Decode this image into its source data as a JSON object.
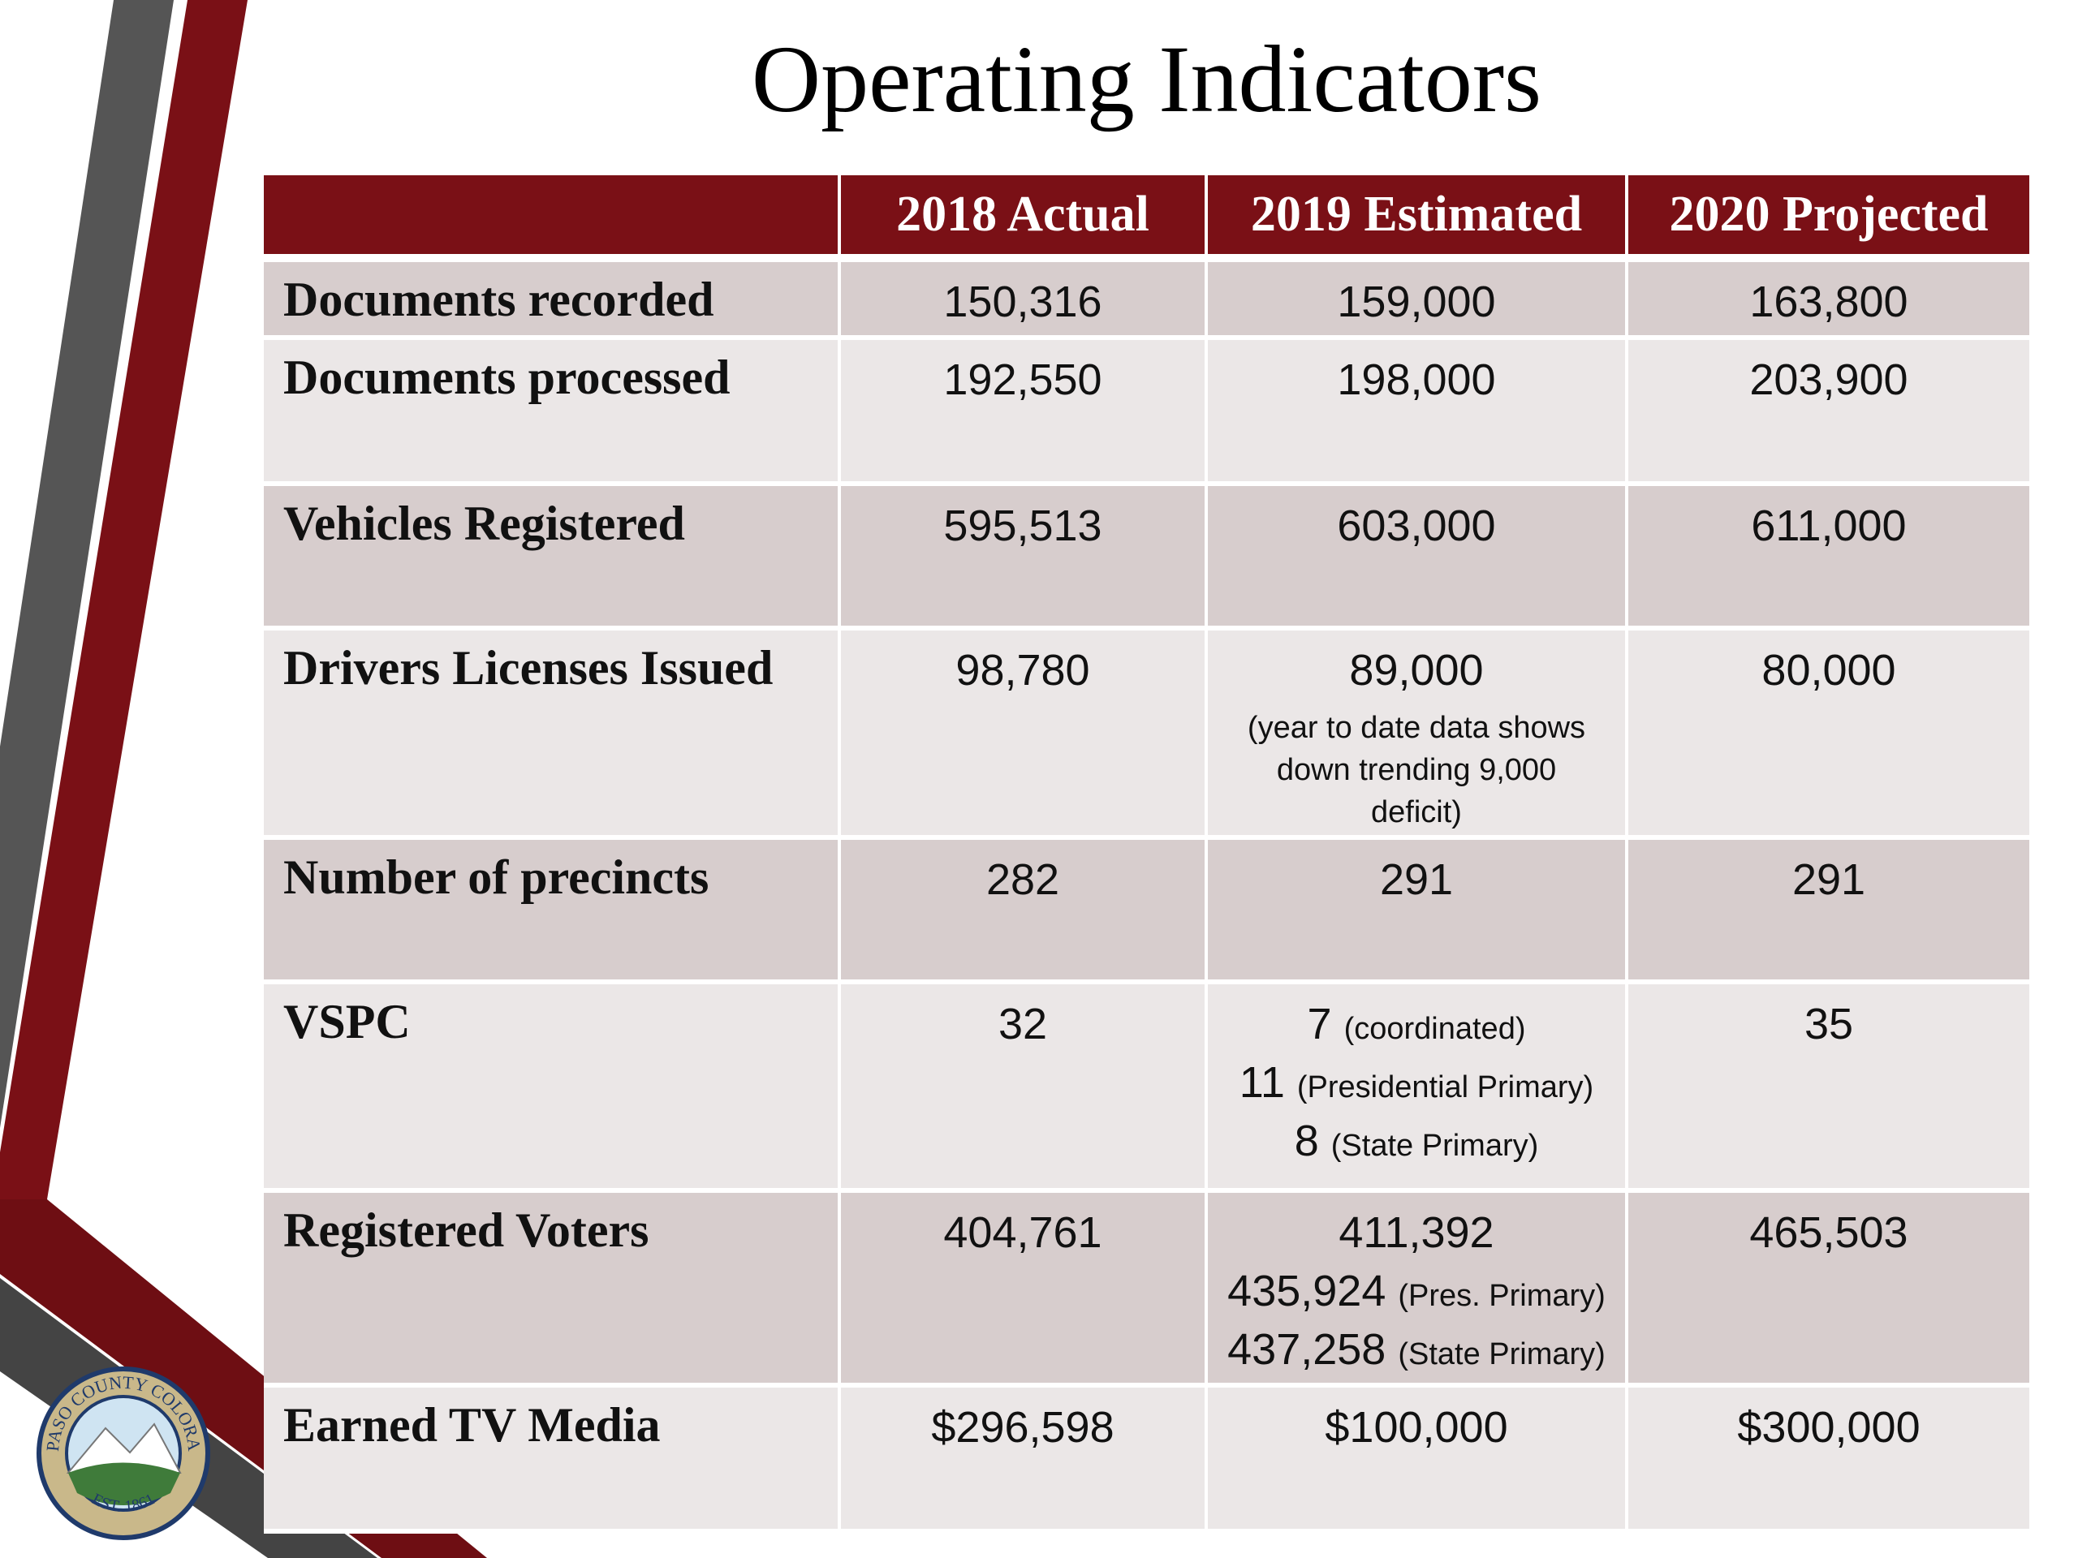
{
  "title": "Operating Indicators",
  "seal": {
    "ring": "EL PASO COUNTY COLORADO",
    "est": "EST. 1861"
  },
  "table": {
    "header": [
      "",
      "2018 Actual",
      "2019 Estimated",
      "2020 Projected"
    ],
    "rows": [
      {
        "label": "Documents recorded",
        "cells": [
          "150,316",
          "159,000",
          "163,800"
        ]
      },
      {
        "label": "Documents processed",
        "cells": [
          "192,550",
          "198,000",
          "203,900"
        ]
      },
      {
        "label": "Vehicles Registered",
        "cells": [
          "595,513",
          "603,000",
          "611,000"
        ]
      },
      {
        "label": "Drivers Licenses Issued",
        "cells": [
          "98,780",
          [
            {
              "value": "89,000"
            },
            {
              "note": "(year to date data shows down trending 9,000 deficit)"
            }
          ],
          "80,000"
        ]
      },
      {
        "label": "Number of precincts",
        "cells": [
          "282",
          "291",
          "291"
        ]
      },
      {
        "label": "VSPC",
        "cells": [
          "32",
          [
            {
              "value": "7",
              "note": "(coordinated)"
            },
            {
              "value": "11",
              "note": "(Presidential Primary)"
            },
            {
              "value": "8",
              "note": "(State Primary)"
            }
          ],
          "35"
        ]
      },
      {
        "label": "Registered Voters",
        "cells": [
          "404,761",
          [
            {
              "value": "411,392"
            },
            {
              "value": "435,924",
              "note": "(Pres. Primary)"
            },
            {
              "value": "437,258",
              "note": "(State Primary)"
            }
          ],
          "465,503"
        ]
      },
      {
        "label": "Earned TV Media",
        "cells": [
          "$296,598",
          "$100,000",
          "$300,000"
        ]
      }
    ]
  }
}
